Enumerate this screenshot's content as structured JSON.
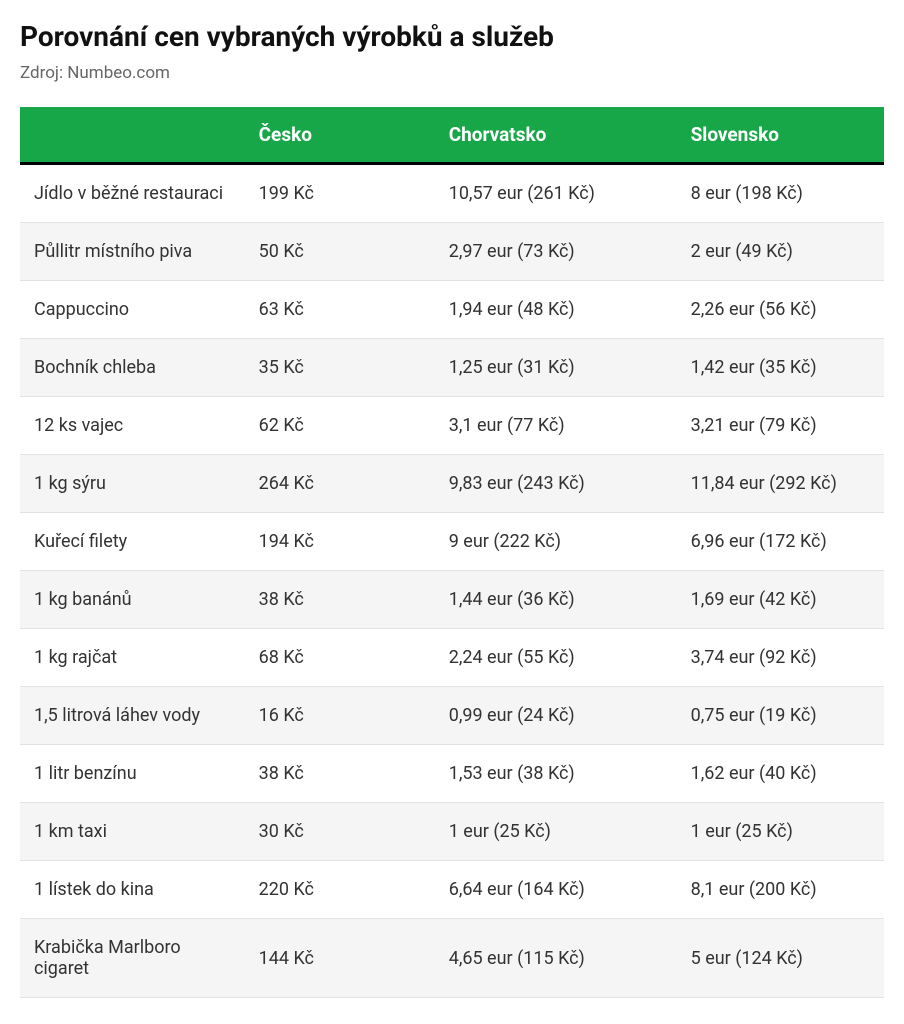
{
  "title": "Porovnání cen vybraných výrobků a služeb",
  "source": "Zdroj: Numbeo.com",
  "table": {
    "header_bg": "#18a748",
    "header_fg": "#ffffff",
    "row_alt_bg": "#f5f5f5",
    "border_color": "#e2e2e2",
    "columns": [
      "",
      "Česko",
      "Chorvatsko",
      "Slovensko"
    ],
    "rows": [
      [
        "Jídlo v běžné restauraci",
        "199 Kč",
        "10,57 eur (261 Kč)",
        "8 eur (198 Kč)"
      ],
      [
        "Půllitr místního piva",
        "50 Kč",
        "2,97 eur (73 Kč)",
        "2 eur (49 Kč)"
      ],
      [
        "Cappuccino",
        "63 Kč",
        "1,94 eur (48 Kč)",
        "2,26 eur (56 Kč)"
      ],
      [
        "Bochník chleba",
        "35 Kč",
        "1,25 eur (31 Kč)",
        "1,42 eur (35 Kč)"
      ],
      [
        "12 ks vajec",
        "62 Kč",
        "3,1 eur (77 Kč)",
        "3,21 eur (79 Kč)"
      ],
      [
        "1 kg sýru",
        "264 Kč",
        "9,83 eur (243 Kč)",
        "11,84 eur (292 Kč)"
      ],
      [
        "Kuřecí filety",
        "194 Kč",
        "9 eur (222 Kč)",
        "6,96 eur (172 Kč)"
      ],
      [
        "1 kg banánů",
        "38 Kč",
        "1,44 eur (36 Kč)",
        "1,69 eur (42 Kč)"
      ],
      [
        "1 kg rajčat",
        "68 Kč",
        "2,24 eur (55 Kč)",
        "3,74 eur (92 Kč)"
      ],
      [
        "1,5 litrová láhev vody",
        "16 Kč",
        "0,99 eur (24 Kč)",
        "0,75 eur (19 Kč)"
      ],
      [
        "1 litr benzínu",
        "38 Kč",
        "1,53 eur (38 Kč)",
        "1,62 eur (40 Kč)"
      ],
      [
        "1 km taxi",
        "30 Kč",
        "1 eur (25 Kč)",
        "1 eur (25 Kč)"
      ],
      [
        "1 lístek do kina",
        "220 Kč",
        "6,64 eur (164 Kč)",
        "8,1 eur (200 Kč)"
      ],
      [
        "Krabička Marlboro cigaret",
        "144 Kč",
        "4,65 eur (115 Kč)",
        "5 eur (124 Kč)"
      ]
    ]
  }
}
